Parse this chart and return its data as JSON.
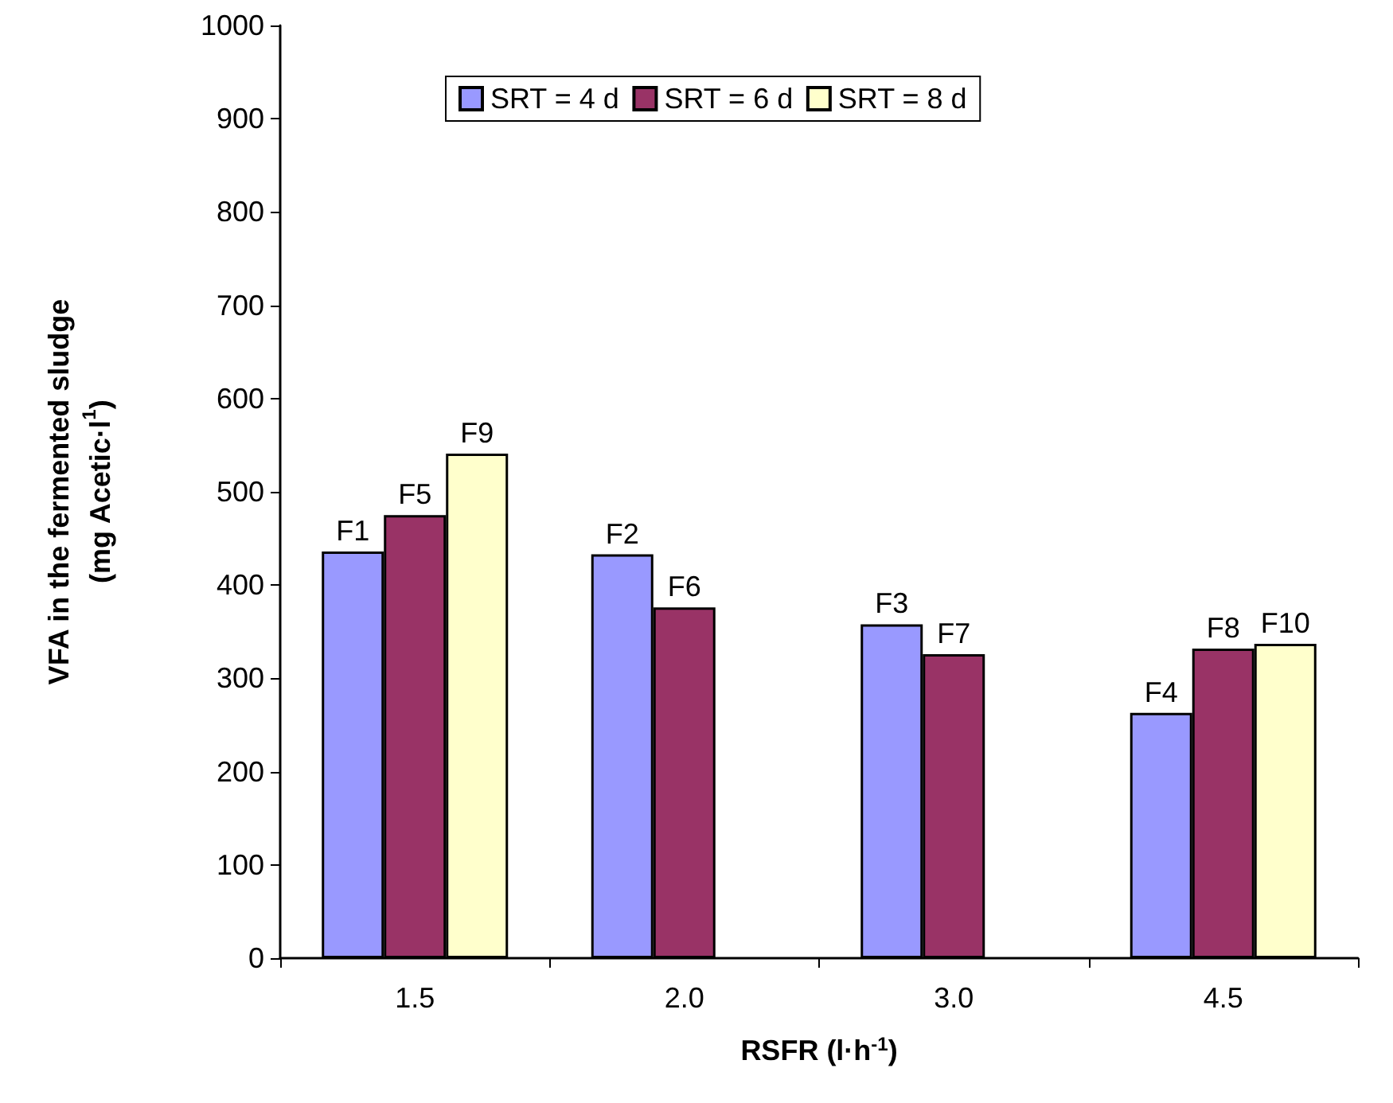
{
  "chart_data": {
    "type": "bar",
    "xlabel": "RSFR (l·h$^{-1}$)",
    "ylabel": "VFA in the fermented sludge\n(mg Acetic·l$^{1}$)",
    "categories": [
      "1.5",
      "2.0",
      "3.0",
      "4.5"
    ],
    "series": [
      {
        "name": "SRT = 4 d",
        "color": "#9999ff",
        "values": [
          436,
          433,
          358,
          263
        ],
        "value_labels": [
          "F1",
          "F2",
          "F3",
          "F4"
        ]
      },
      {
        "name": "SRT = 6 d",
        "color": "#993366",
        "values": [
          475,
          376,
          326,
          332
        ],
        "value_labels": [
          "F5",
          "F6",
          "F7",
          "F8"
        ]
      },
      {
        "name": "SRT = 8 d",
        "color": "#ffffcc",
        "values": [
          541,
          null,
          null,
          337
        ],
        "value_labels": [
          "F9",
          null,
          null,
          "F10"
        ]
      }
    ],
    "ylim": [
      0,
      1000
    ],
    "yticks": [
      0,
      100,
      200,
      300,
      400,
      500,
      600,
      700,
      800,
      900,
      1000
    ],
    "grid": false,
    "legend": "top"
  }
}
